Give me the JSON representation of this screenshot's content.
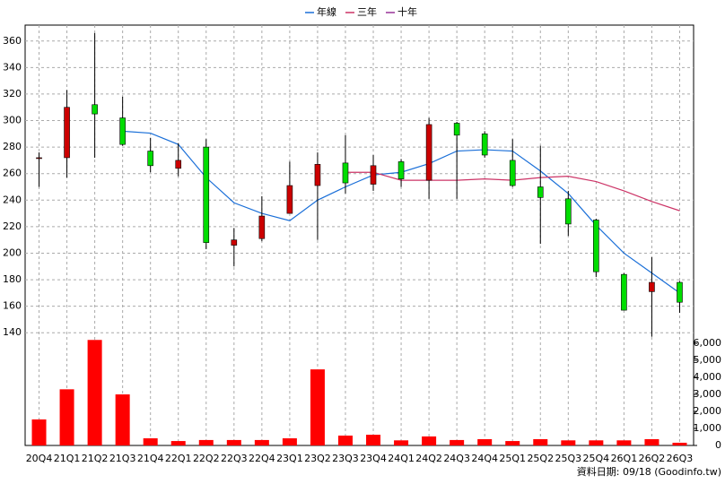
{
  "chart_data": {
    "type": "candlestick",
    "categories": [
      "20Q4",
      "21Q1",
      "21Q2",
      "21Q3",
      "21Q4",
      "22Q1",
      "22Q2",
      "22Q3",
      "22Q4",
      "23Q1",
      "23Q2",
      "23Q3",
      "23Q4",
      "24Q1",
      "24Q2",
      "24Q3",
      "24Q4",
      "25Q1",
      "25Q2",
      "25Q3",
      "25Q4",
      "26Q1",
      "26Q2",
      "26Q3"
    ],
    "open": [
      272,
      272,
      312,
      302,
      277,
      264,
      280,
      206,
      211,
      230,
      251,
      268,
      252,
      269,
      255,
      298,
      290,
      270,
      250,
      241,
      225,
      184,
      171,
      178
    ],
    "high": [
      276,
      323,
      366,
      318,
      287,
      283,
      286,
      219,
      243,
      269,
      276,
      289,
      274,
      271,
      302,
      299,
      292,
      286,
      281,
      247,
      226,
      185,
      197,
      179
    ],
    "low": [
      250,
      257,
      272,
      281,
      261,
      258,
      203,
      190,
      209,
      230,
      210,
      245,
      247,
      250,
      241,
      241,
      272,
      250,
      207,
      213,
      182,
      157,
      137,
      155
    ],
    "close": [
      272,
      310,
      305,
      282,
      266,
      270,
      208,
      210,
      228,
      251,
      267,
      253,
      266,
      256,
      297,
      289,
      274,
      251,
      242,
      222,
      186,
      157,
      178,
      163
    ],
    "up_color": "#cc0000",
    "down_color": "#00dd00",
    "series": [
      {
        "name": "年線",
        "color": "#1a6fd8",
        "values": [
          null,
          null,
          null,
          292,
          290.5,
          282,
          257,
          238,
          230,
          224.5,
          240,
          250,
          259,
          261,
          267.5,
          277,
          278,
          277,
          262,
          245,
          221,
          200,
          185,
          170
        ]
      },
      {
        "name": "三年",
        "color": "#cc3366",
        "values": [
          null,
          null,
          null,
          null,
          null,
          null,
          null,
          null,
          null,
          null,
          null,
          261,
          261,
          255,
          255,
          255,
          256,
          255,
          257,
          258,
          254,
          247,
          239,
          232
        ]
      },
      {
        "name": "十年",
        "color": "#993399",
        "values": [
          null,
          null,
          null,
          null,
          null,
          null,
          null,
          null,
          null,
          null,
          null,
          null,
          null,
          null,
          null,
          null,
          null,
          null,
          null,
          null,
          null,
          null,
          null,
          null
        ]
      }
    ],
    "volume": {
      "color": "#ff0000",
      "axis": "y2",
      "values": [
        1530,
        3300,
        6200,
        3000,
        420,
        260,
        320,
        320,
        320,
        420,
        4470,
        580,
        630,
        300,
        530,
        320,
        370,
        260,
        370,
        300,
        300,
        300,
        370,
        160
      ]
    },
    "ylim": [
      55,
      372
    ],
    "yticks": [
      140,
      160,
      180,
      200,
      220,
      240,
      260,
      280,
      300,
      320,
      340,
      360
    ],
    "y2lim": [
      0,
      24700
    ],
    "y2ticks": [
      0,
      {
        "value": 1000,
        "label": "1,000"
      },
      {
        "value": 2000,
        "label": "2,000"
      },
      {
        "value": 3000,
        "label": "3,000"
      },
      {
        "value": 4000,
        "label": "4,000"
      },
      {
        "value": 5000,
        "label": "5,000"
      },
      {
        "value": 6000,
        "label": "6,000"
      }
    ],
    "grid": true,
    "legend": "top",
    "note": "資料日期: 09/18  (Goodinfo.tw)"
  }
}
